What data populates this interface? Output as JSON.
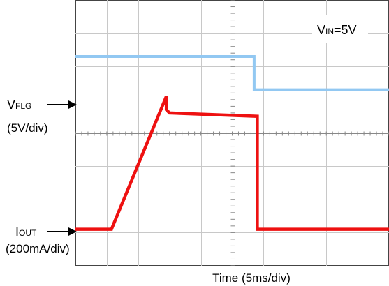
{
  "chart_data": {
    "type": "line",
    "xlabel": "Time (5ms/div)",
    "x_divisions": 10,
    "y_divisions": 8,
    "grid": true,
    "annotation": {
      "prefix": "V",
      "sub": "IN",
      "suffix": "=5V"
    },
    "channels": [
      {
        "label_main": "V",
        "label_sub": "FLG",
        "scale": "(5V/div)",
        "color": "#92c8f2",
        "x_div": [
          0,
          5.7,
          5.7,
          10
        ],
        "y_div": [
          6.3,
          6.3,
          5.3,
          5.3
        ]
      },
      {
        "label_main": "I",
        "label_sub": "OUT",
        "scale": "(200mA/div)",
        "color": "#ee1111",
        "x_div": [
          0,
          1.15,
          2.9,
          2.9,
          3.0,
          5.8,
          5.8,
          10
        ],
        "y_div": [
          1.1,
          1.1,
          5.1,
          4.7,
          4.6,
          4.5,
          1.1,
          1.1
        ]
      }
    ]
  }
}
